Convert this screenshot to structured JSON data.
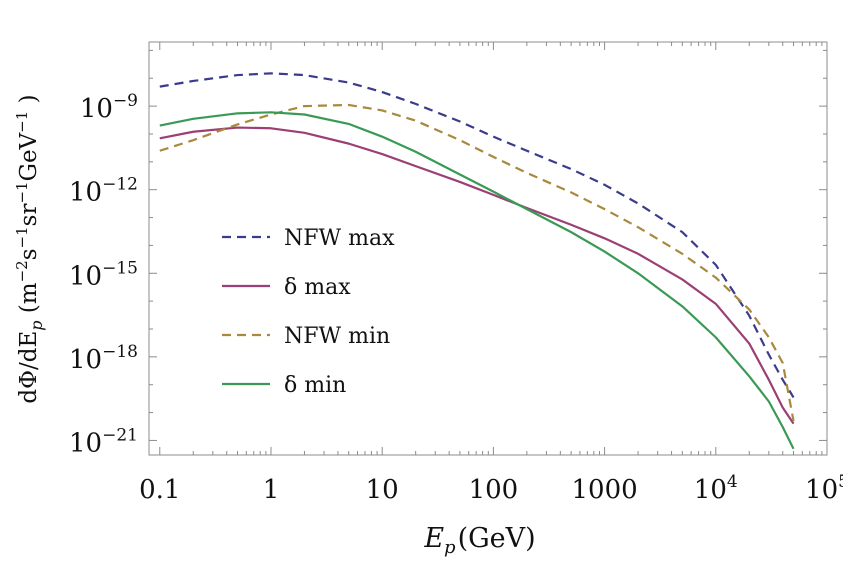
{
  "chart_data": {
    "type": "line",
    "title": "",
    "xlabel": "E_p (GeV)",
    "ylabel": "dΦ/dE_p (m⁻²s⁻¹sr⁻¹GeV⁻¹)",
    "x_scale": "log",
    "y_scale": "log",
    "xlim": [
      0.08,
      100000
    ],
    "ylim": [
      3e-22,
      2e-07
    ],
    "grid": false,
    "legend_position": "left-middle",
    "x_ticks": [
      {
        "value": 0.1,
        "label": "0.1"
      },
      {
        "value": 1,
        "label": "1"
      },
      {
        "value": 10,
        "label": "10"
      },
      {
        "value": 100,
        "label": "100"
      },
      {
        "value": 1000,
        "label": "1000"
      },
      {
        "value": 10000,
        "label": "10",
        "exponent": "4"
      },
      {
        "value": 100000,
        "label": "10",
        "exponent": "5"
      }
    ],
    "y_ticks": [
      {
        "value": 1e-21,
        "label": "10",
        "exponent": "−21"
      },
      {
        "value": 1e-18,
        "label": "10",
        "exponent": "−18"
      },
      {
        "value": 1e-15,
        "label": "10",
        "exponent": "−15"
      },
      {
        "value": 1e-12,
        "label": "10",
        "exponent": "−12"
      },
      {
        "value": 1e-09,
        "label": "10",
        "exponent": "−9"
      }
    ],
    "series": [
      {
        "name": "NFW max",
        "color": "#3b3b8c",
        "dash": "dashed",
        "x": [
          0.1,
          0.2,
          0.5,
          1,
          2,
          5,
          10,
          20,
          50,
          100,
          200,
          500,
          1000,
          2000,
          5000,
          10000,
          20000,
          30000,
          40000,
          50000
        ],
        "y": [
          5e-09,
          8e-09,
          1.3e-08,
          1.5e-08,
          1.3e-08,
          7e-09,
          3.2e-09,
          1.2e-09,
          2.8e-10,
          8e-11,
          2.5e-11,
          5.5e-12,
          1.5e-12,
          3.2e-13,
          3e-14,
          2e-15,
          3e-17,
          1.2e-18,
          1.5e-19,
          3.5e-20
        ]
      },
      {
        "name": "δ max",
        "color": "#9b3f74",
        "dash": "solid",
        "x": [
          0.1,
          0.2,
          0.5,
          1,
          2,
          5,
          10,
          20,
          50,
          100,
          200,
          500,
          1000,
          2000,
          5000,
          10000,
          20000,
          30000,
          40000,
          50000
        ],
        "y": [
          7e-11,
          1.2e-10,
          1.7e-10,
          1.6e-10,
          1.1e-10,
          4.5e-11,
          1.9e-11,
          7e-12,
          1.9e-12,
          6.5e-13,
          2.2e-13,
          5.5e-14,
          1.8e-14,
          5e-15,
          6e-16,
          8e-17,
          3e-18,
          1.5e-19,
          1.5e-20,
          4e-21
        ]
      },
      {
        "name": "NFW min",
        "color": "#a8893d",
        "dash": "dashed",
        "x": [
          0.1,
          0.2,
          0.5,
          1,
          2,
          5,
          10,
          20,
          50,
          100,
          200,
          500,
          1000,
          2000,
          5000,
          10000,
          20000,
          30000,
          40000,
          50000
        ],
        "y": [
          2.5e-11,
          6e-11,
          2.2e-10,
          5e-10,
          1e-09,
          1.1e-09,
          7e-10,
          3e-10,
          6e-11,
          1.5e-11,
          4e-12,
          8e-13,
          2e-13,
          4.5e-14,
          5e-15,
          7e-16,
          5e-17,
          5e-18,
          6e-19,
          5e-21
        ]
      },
      {
        "name": "δ min",
        "color": "#3a9a55",
        "dash": "solid",
        "x": [
          0.1,
          0.2,
          0.5,
          1,
          2,
          5,
          10,
          20,
          50,
          100,
          200,
          500,
          1000,
          2000,
          5000,
          10000,
          20000,
          30000,
          40000,
          50000
        ],
        "y": [
          2e-10,
          3.5e-10,
          5.5e-10,
          6e-10,
          5e-10,
          2.3e-10,
          8e-11,
          2.3e-11,
          3.5e-12,
          8.5e-13,
          2e-13,
          3e-14,
          6e-15,
          1e-15,
          6.5e-17,
          5e-18,
          2e-19,
          2.5e-20,
          3e-21,
          5e-22
        ]
      }
    ]
  }
}
